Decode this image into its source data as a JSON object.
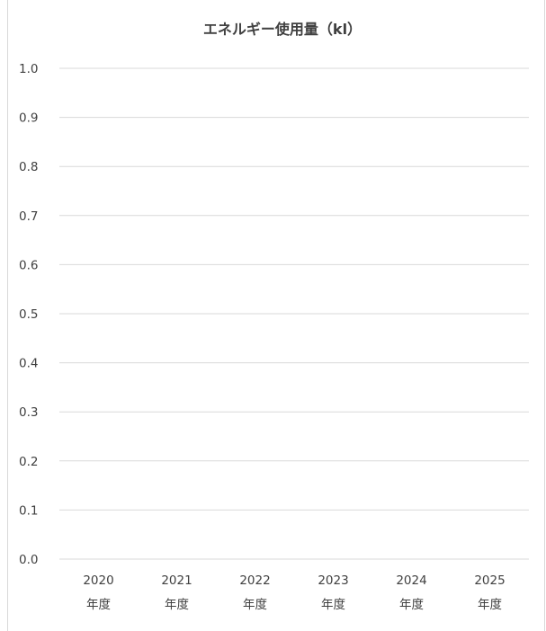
{
  "chart_data": {
    "type": "bar",
    "title": "エネルギー使用量（kl）",
    "xlabel": "",
    "ylabel": "",
    "categories": [
      {
        "year": "2020",
        "suffix": "年度"
      },
      {
        "year": "2021",
        "suffix": "年度"
      },
      {
        "year": "2022",
        "suffix": "年度"
      },
      {
        "year": "2023",
        "suffix": "年度"
      },
      {
        "year": "2024",
        "suffix": "年度"
      },
      {
        "year": "2025",
        "suffix": "年度"
      }
    ],
    "series": [],
    "ylim": [
      0,
      1.0
    ],
    "yticks": [
      "0.0",
      "0.1",
      "0.2",
      "0.3",
      "0.4",
      "0.5",
      "0.6",
      "0.7",
      "0.8",
      "0.9",
      "1.0"
    ],
    "grid": true,
    "legend": "none",
    "colors": {
      "grid": "#d9d9d9",
      "text": "#404040",
      "border": "#d9d9d9"
    }
  }
}
